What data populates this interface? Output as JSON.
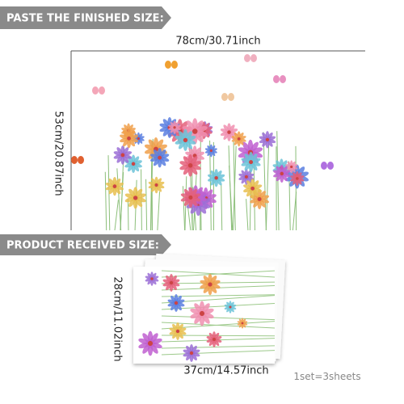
{
  "banner_top": "PASTE THE FINISHED SIZE:",
  "finished_width": "78cm/30.71inch",
  "finished_height": "53cm/20.87inch",
  "banner_bottom": "PRODUCT RECEIVED SIZE:",
  "received_height": "28cm/11.02inch",
  "received_width": "37cm/14.57inch",
  "set_note": "1set=3sheets"
}
